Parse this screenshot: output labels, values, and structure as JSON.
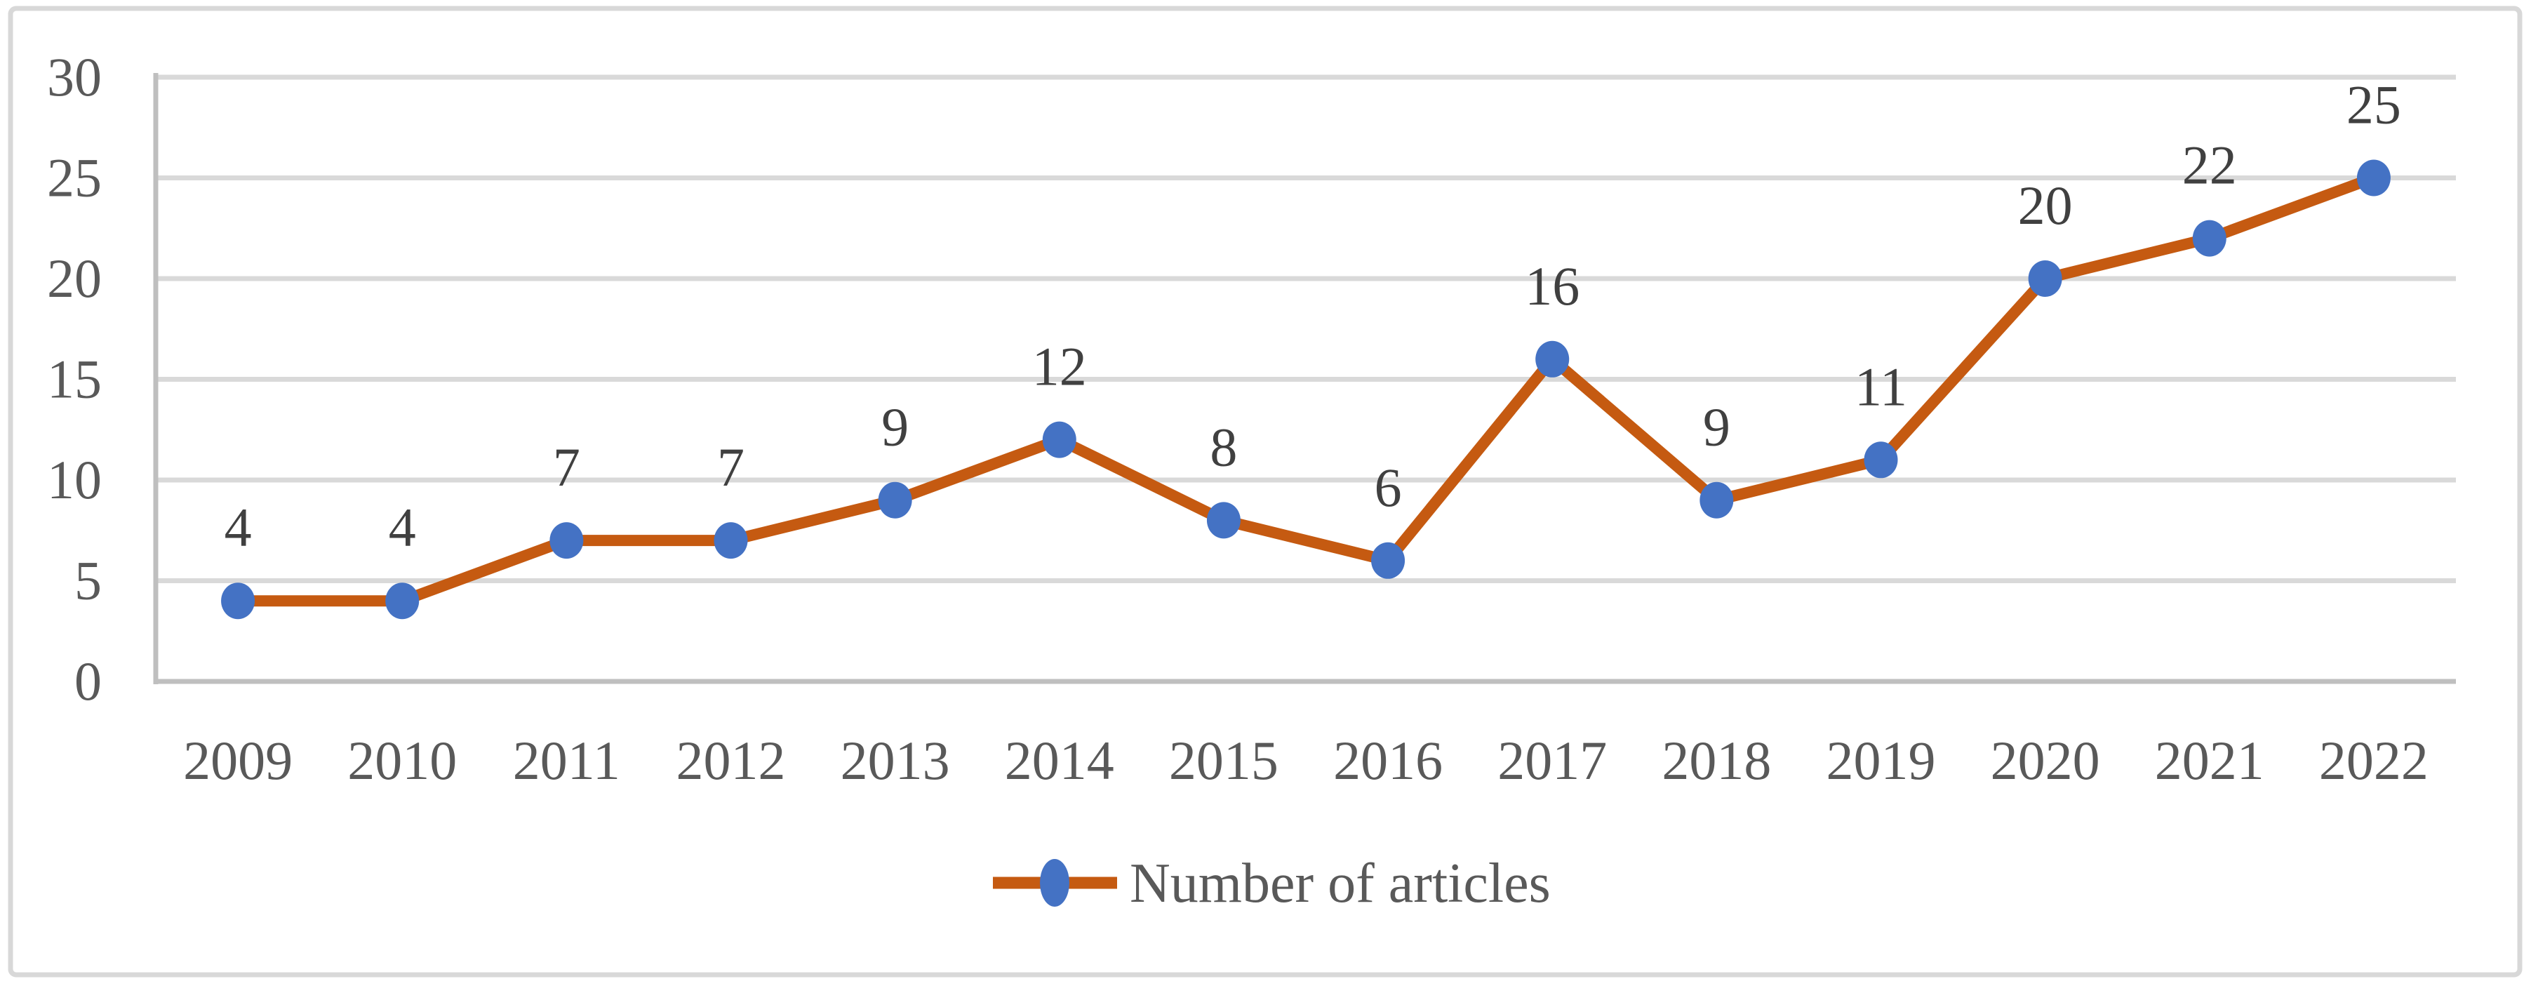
{
  "chart_data": {
    "type": "line",
    "title": "",
    "xlabel": "",
    "ylabel": "",
    "categories": [
      "2009",
      "2010",
      "2011",
      "2012",
      "2013",
      "2014",
      "2015",
      "2016",
      "2017",
      "2018",
      "2019",
      "2020",
      "2021",
      "2022"
    ],
    "series": [
      {
        "name": "Number of articles",
        "values": [
          4,
          4,
          7,
          7,
          9,
          12,
          8,
          6,
          16,
          9,
          11,
          20,
          22,
          25
        ]
      }
    ],
    "ylim": [
      0,
      30
    ],
    "yticks": [
      0,
      5,
      10,
      15,
      20,
      25,
      30
    ],
    "grid": true,
    "data_labels": true,
    "legend_position": "bottom-center",
    "marker_shape": "circle",
    "colors": {
      "line": "#C55A11",
      "marker": "#4472C4",
      "gridline": "#D9D9D9",
      "axis_line": "#BFBFBF",
      "tick_label": "#595959",
      "data_label": "#404040",
      "legend_text": "#595959",
      "frame_border": "#D8D8D8",
      "background": "#FFFFFF"
    }
  }
}
